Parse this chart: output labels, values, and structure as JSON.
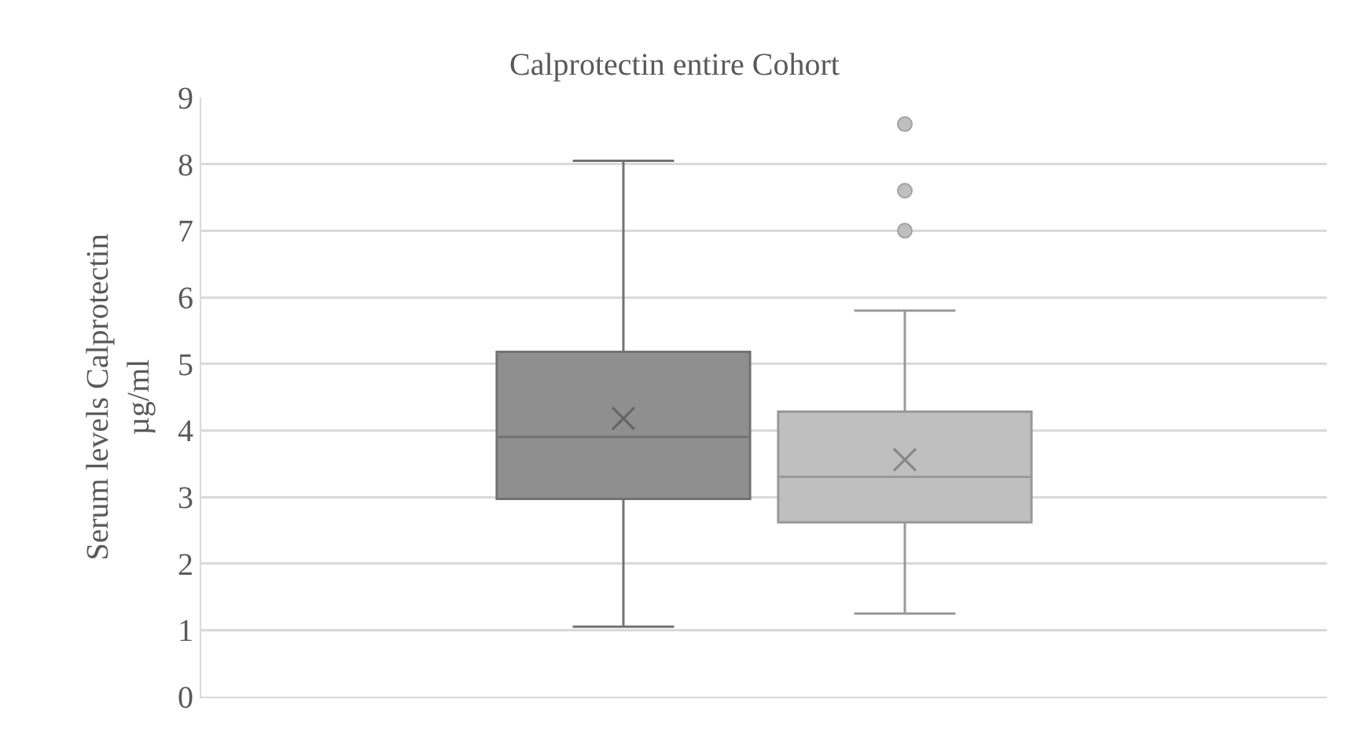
{
  "chart_data": {
    "type": "box",
    "title": "Calprotectin entire Cohort",
    "ylabel": "Serum levels Calprotectin\nµg/ml",
    "categories": [
      null
    ],
    "series": [
      {
        "color": "#8f8f8f",
        "boxes": [
          {
            "low": 1.05,
            "q1": 2.97,
            "median": 3.9,
            "q3": 5.18,
            "high": 8.05,
            "mean": 4.18
          }
        ]
      },
      {
        "color": "#bfbfbf",
        "boxes": [
          {
            "low": 1.25,
            "q1": 2.62,
            "median": 3.3,
            "q3": 4.28,
            "high": 5.8,
            "mean": 3.56,
            "outliers": [
              7.0,
              7.6,
              8.6
            ]
          }
        ]
      }
    ],
    "ylim": [
      0,
      9
    ],
    "yticks": [
      0,
      1,
      2,
      3,
      4,
      5,
      6,
      7,
      8,
      9
    ],
    "grid": "y",
    "tick_labels": "y"
  }
}
